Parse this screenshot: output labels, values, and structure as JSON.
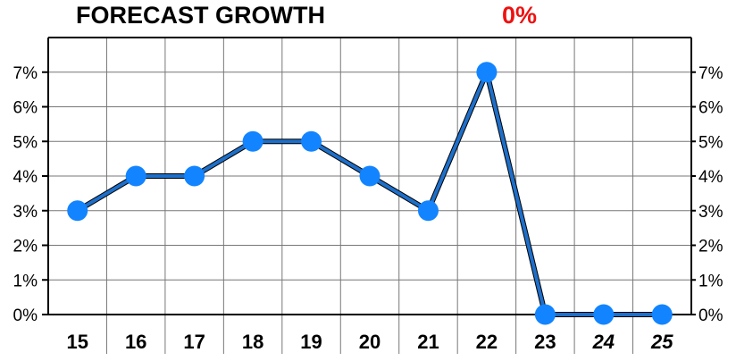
{
  "chart_data": {
    "type": "line",
    "title": "FORECAST GROWTH",
    "title_value": "0%",
    "title_value_color": "#ee1111",
    "categories": [
      "15",
      "16",
      "17",
      "18",
      "19",
      "20",
      "21",
      "22",
      "23",
      "24",
      "25"
    ],
    "italic_categories": [
      "24",
      "25"
    ],
    "y_ticks": [
      "0%",
      "1%",
      "2%",
      "3%",
      "4%",
      "5%",
      "6%",
      "7%"
    ],
    "ylim": [
      0,
      8
    ],
    "series": [
      {
        "values": [
          3,
          4,
          4,
          5,
          5,
          4,
          3,
          7,
          0,
          0,
          0
        ],
        "line_color": "#1f6fc9",
        "marker_color": "#1384ff"
      }
    ],
    "grid": true,
    "y_axis_both_sides": true
  }
}
